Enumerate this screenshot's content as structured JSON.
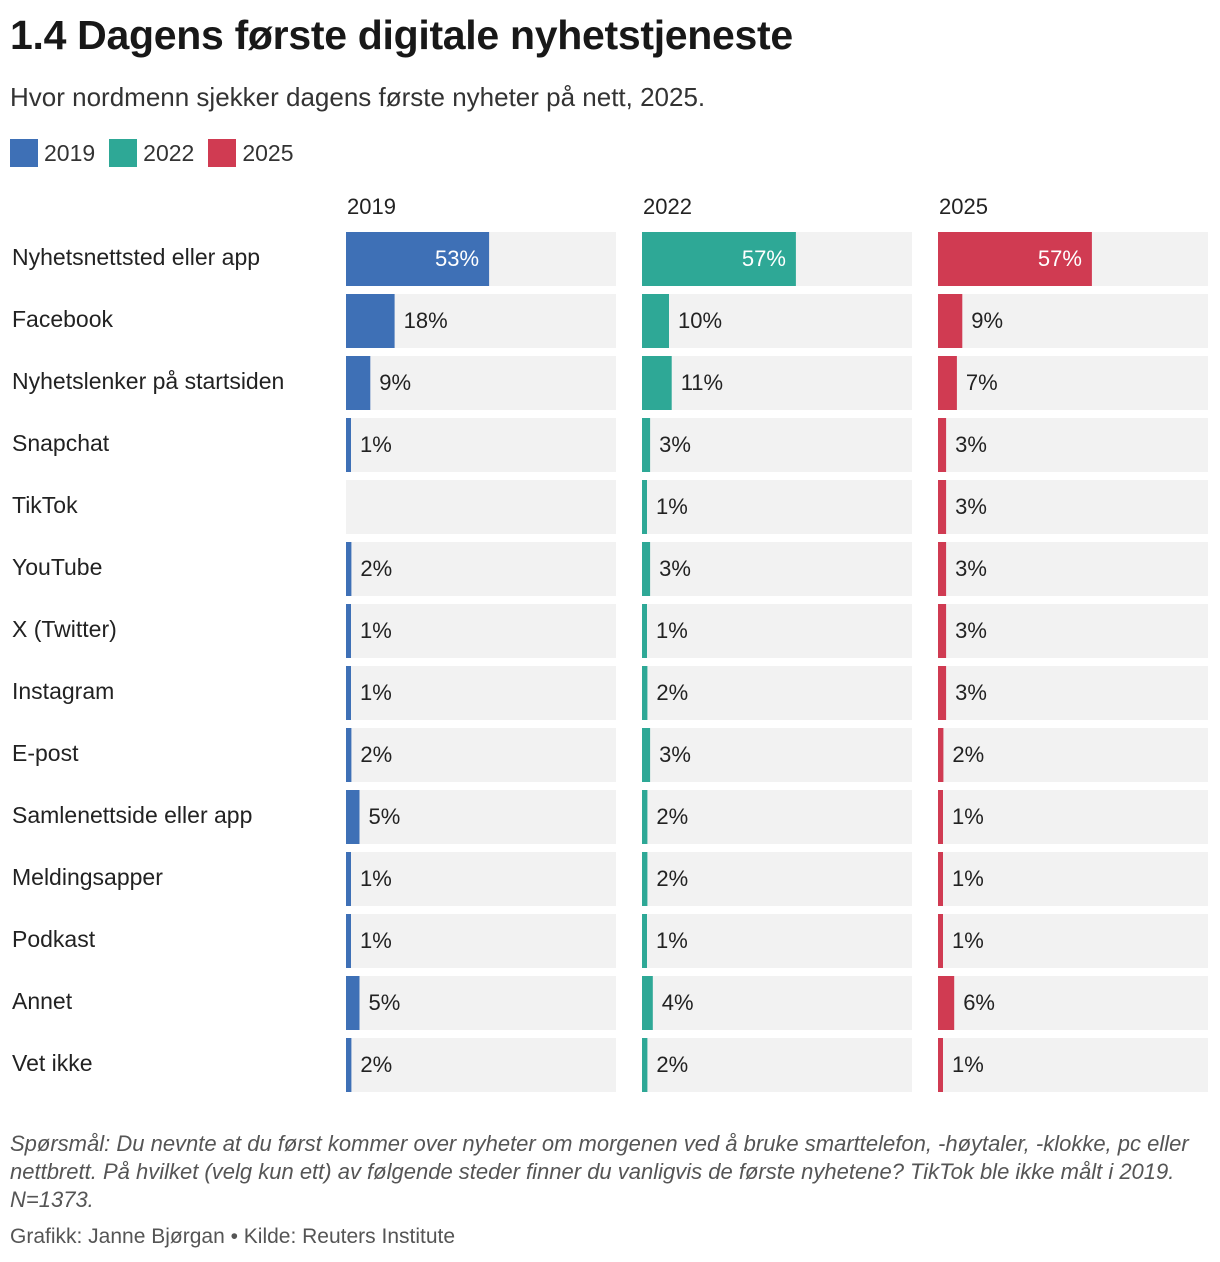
{
  "header": {
    "title": "1.4 Dagens første digitale nyhetstjeneste",
    "subtitle": "Hvor nordmenn sjekker dagens første nyheter på nett, 2025."
  },
  "legend": [
    {
      "label": "2019",
      "color": "#3e70b6"
    },
    {
      "label": "2022",
      "color": "#2ea896"
    },
    {
      "label": "2025",
      "color": "#d03b52"
    }
  ],
  "footer": {
    "note": "Spørsmål: Du nevnte at du først kommer over nyheter om morgenen ved å bruke smarttelefon, -høytaler, -klokke, pc eller nettbrett. På hvilket (velg kun ett) av følgende steder finner du vanligvis de første nyhetene? TikTok ble ikke målt i 2019. N=1373.",
    "credit": "Grafikk: Janne Bjørgan • Kilde: Reuters Institute"
  },
  "chart_data": {
    "type": "bar",
    "orientation": "horizontal",
    "layout": "small-multiples",
    "unit": "%",
    "xlim": [
      0,
      100
    ],
    "background_track_color": "#f2f2f2",
    "categories": [
      "Nyhetsnettsted eller app",
      "Facebook",
      "Nyhetslenker på startsiden",
      "Snapchat",
      "TikTok",
      "YouTube",
      "X (Twitter)",
      "Instagram",
      "E-post",
      "Samlenettside eller app",
      "Meldingsapper",
      "Podkast",
      "Annet",
      "Vet ikke"
    ],
    "series": [
      {
        "name": "2019",
        "color": "#3e70b6",
        "values": [
          53,
          18,
          9,
          1,
          null,
          2,
          1,
          1,
          2,
          5,
          1,
          1,
          5,
          2
        ]
      },
      {
        "name": "2022",
        "color": "#2ea896",
        "values": [
          57,
          10,
          11,
          3,
          1,
          3,
          1,
          2,
          3,
          2,
          2,
          1,
          4,
          2
        ]
      },
      {
        "name": "2025",
        "color": "#d03b52",
        "values": [
          57,
          9,
          7,
          3,
          3,
          3,
          3,
          3,
          2,
          1,
          1,
          1,
          6,
          1
        ]
      }
    ]
  }
}
